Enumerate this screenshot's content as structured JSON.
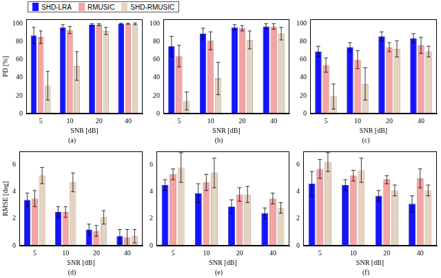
{
  "chart_data": [
    {
      "type": "bar",
      "title": "(a)",
      "x_label": "SNR [dB]",
      "y_label": "PD [%]",
      "legend": "top",
      "categories": [
        "5",
        "10",
        "20",
        "40"
      ],
      "ylim": [
        0,
        105
      ],
      "yticks": [
        0,
        20,
        40,
        60,
        80,
        100
      ],
      "grid": false,
      "series": [
        {
          "name": "SHD-LRA",
          "color": "#1414ff",
          "values": [
            87,
            96,
            99,
            100
          ],
          "errors": [
            9,
            3,
            1,
            0.5
          ]
        },
        {
          "name": "RMUSIC",
          "color": "#f5a3a3",
          "values": [
            85,
            93,
            99,
            100
          ],
          "errors": [
            7,
            4,
            1,
            0.5
          ]
        },
        {
          "name": "SHD-RMUSIC",
          "color": "#e6d3bf",
          "values": [
            31,
            53,
            92,
            100
          ],
          "errors": [
            16,
            16,
            4,
            1
          ]
        }
      ]
    },
    {
      "type": "bar",
      "title": "(b)",
      "x_label": "SNR [dB]",
      "categories": [
        "5",
        "10",
        "20",
        "40"
      ],
      "ylim": [
        0,
        105
      ],
      "yticks": [
        0,
        20,
        40,
        60,
        80,
        100
      ],
      "grid": false,
      "series": [
        {
          "name": "SHD-LRA",
          "color": "#1414ff",
          "values": [
            75,
            89,
            96,
            97
          ],
          "errors": [
            11,
            6,
            3,
            3
          ]
        },
        {
          "name": "RMUSIC",
          "color": "#f5a3a3",
          "values": [
            64,
            81,
            95,
            97
          ],
          "errors": [
            12,
            10,
            3,
            3
          ]
        },
        {
          "name": "SHD-RMUSIC",
          "color": "#e6d3bf",
          "values": [
            14,
            39,
            82,
            89
          ],
          "errors": [
            10,
            18,
            10,
            7
          ]
        }
      ]
    },
    {
      "type": "bar",
      "title": "(c)",
      "x_label": "SNR [dB]",
      "categories": [
        "5",
        "10",
        "20",
        "40"
      ],
      "ylim": [
        0,
        105
      ],
      "yticks": [
        0,
        20,
        40,
        60,
        80,
        100
      ],
      "grid": false,
      "series": [
        {
          "name": "SHD-LRA",
          "color": "#1414ff",
          "values": [
            69,
            74,
            86,
            84
          ],
          "errors": [
            6,
            5,
            5,
            5
          ]
        },
        {
          "name": "RMUSIC",
          "color": "#f5a3a3",
          "values": [
            54,
            60,
            74,
            76
          ],
          "errors": [
            8,
            10,
            5,
            9
          ]
        },
        {
          "name": "SHD-RMUSIC",
          "color": "#e6d3bf",
          "values": [
            19,
            33,
            72,
            69
          ],
          "errors": [
            14,
            18,
            9,
            6
          ]
        }
      ]
    },
    {
      "type": "bar",
      "title": "(d)",
      "x_label": "SNR [dB]",
      "y_label": "RMSE [deg]",
      "categories": [
        "5",
        "10",
        "20",
        "40"
      ],
      "ylim": [
        0,
        7
      ],
      "yticks": [
        0,
        2,
        4,
        6
      ],
      "grid": false,
      "series": [
        {
          "name": "SHD-LRA",
          "color": "#1414ff",
          "values": [
            3.4,
            2.5,
            1.2,
            0.7
          ],
          "errors": [
            0.5,
            0.4,
            0.4,
            0.5
          ]
        },
        {
          "name": "RMUSIC",
          "color": "#f5a3a3",
          "values": [
            3.5,
            2.5,
            1.1,
            0.6
          ],
          "errors": [
            0.6,
            0.4,
            0.4,
            0.6
          ]
        },
        {
          "name": "SHD-RMUSIC",
          "color": "#e6d3bf",
          "values": [
            5.2,
            4.7,
            2.1,
            0.7
          ],
          "errors": [
            0.6,
            0.7,
            0.5,
            0.5
          ]
        }
      ]
    },
    {
      "type": "bar",
      "title": "(e)",
      "x_label": "SNR [dB]",
      "categories": [
        "5",
        "10",
        "20",
        "40"
      ],
      "ylim": [
        0,
        7
      ],
      "yticks": [
        0,
        2,
        4,
        6
      ],
      "grid": false,
      "series": [
        {
          "name": "SHD-LRA",
          "color": "#1414ff",
          "values": [
            4.5,
            3.9,
            2.9,
            2.4
          ],
          "errors": [
            0.4,
            0.7,
            0.5,
            0.4
          ]
        },
        {
          "name": "RMUSIC",
          "color": "#f5a3a3",
          "values": [
            5.3,
            4.7,
            3.8,
            3.5
          ],
          "errors": [
            0.4,
            0.6,
            0.5,
            0.4
          ]
        },
        {
          "name": "SHD-RMUSIC",
          "color": "#e6d3bf",
          "values": [
            5.8,
            5.4,
            3.8,
            2.8
          ],
          "errors": [
            1.1,
            1.1,
            0.6,
            0.4
          ]
        }
      ]
    },
    {
      "type": "bar",
      "title": "(f)",
      "x_label": "SNR [dB]",
      "categories": [
        "5",
        "10",
        "20",
        "40"
      ],
      "ylim": [
        0,
        7
      ],
      "yticks": [
        0,
        2,
        4,
        6
      ],
      "grid": false,
      "series": [
        {
          "name": "SHD-LRA",
          "color": "#1414ff",
          "values": [
            4.6,
            4.5,
            3.7,
            3.1
          ],
          "errors": [
            0.9,
            0.4,
            0.4,
            0.6
          ]
        },
        {
          "name": "RMUSIC",
          "color": "#f5a3a3",
          "values": [
            5.7,
            5.2,
            4.9,
            5.0
          ],
          "errors": [
            0.7,
            0.4,
            0.3,
            0.7
          ]
        },
        {
          "name": "SHD-RMUSIC",
          "color": "#e6d3bf",
          "values": [
            6.2,
            5.6,
            4.1,
            4.1
          ],
          "errors": [
            0.7,
            0.9,
            0.4,
            0.4
          ]
        }
      ]
    }
  ]
}
